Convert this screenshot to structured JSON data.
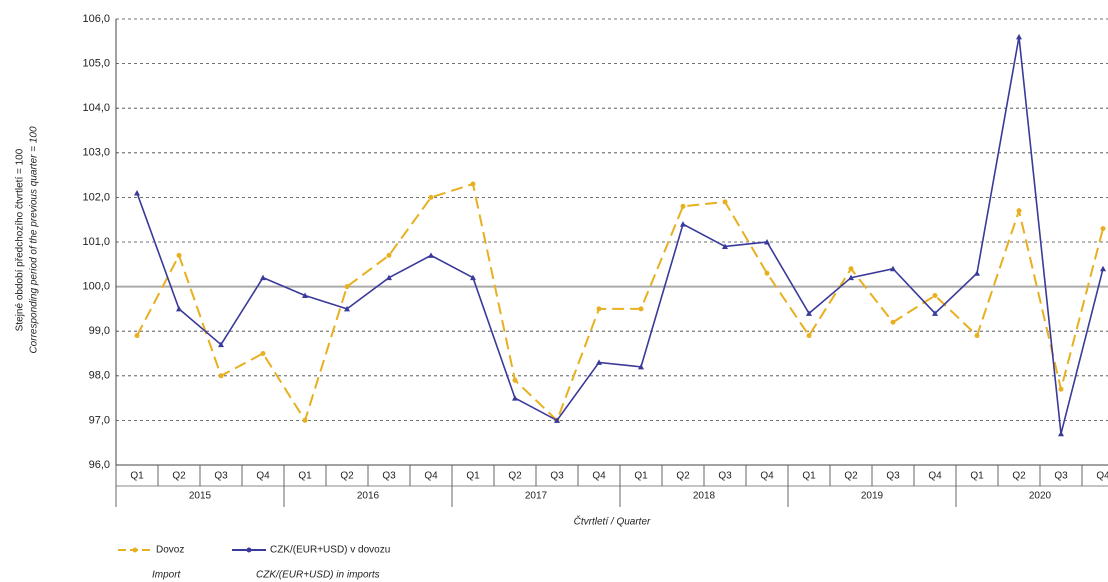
{
  "chart_data": {
    "type": "line",
    "y_label": [
      "Stejné období předchozího čtvrtletí = 100",
      "Corresponding period of the previous quarter = 100"
    ],
    "x_label": "Čtvrtletí  / Quarter",
    "categories": [
      "Q1",
      "Q2",
      "Q3",
      "Q4",
      "Q1",
      "Q2",
      "Q3",
      "Q4",
      "Q1",
      "Q2",
      "Q3",
      "Q4",
      "Q1",
      "Q2",
      "Q3",
      "Q4",
      "Q1",
      "Q2",
      "Q3",
      "Q4",
      "Q1",
      "Q2",
      "Q3",
      "Q4"
    ],
    "years": [
      "2015",
      "2016",
      "2017",
      "2018",
      "2019",
      "2020"
    ],
    "series": [
      {
        "name": "Dovoz",
        "name_en": "Import",
        "color": "#e8b020",
        "dashed": true,
        "values": [
          98.9,
          100.7,
          98.0,
          98.5,
          97.0,
          100.0,
          100.7,
          102.0,
          102.3,
          97.9,
          97.0,
          99.5,
          99.5,
          101.8,
          101.9,
          100.3,
          98.9,
          100.4,
          99.2,
          99.8,
          98.9,
          101.7,
          97.7,
          101.3
        ]
      },
      {
        "name": "CZK/(EUR+USD) v dovozu",
        "name_en": "CZK/(EUR+USD)  in imports",
        "color": "#3a3a9a",
        "dashed": false,
        "values": [
          102.1,
          99.5,
          98.7,
          100.2,
          99.8,
          99.5,
          100.2,
          100.7,
          100.2,
          97.5,
          97.0,
          98.3,
          98.2,
          101.4,
          100.9,
          101.0,
          99.4,
          100.2,
          100.4,
          99.4,
          100.3,
          105.6,
          96.7,
          100.4
        ]
      }
    ],
    "ylim": [
      96,
      106
    ],
    "yticks": [
      {
        "value": 96,
        "label": "96,0"
      },
      {
        "value": 97,
        "label": "97,0"
      },
      {
        "value": 98,
        "label": "98,0"
      },
      {
        "value": 99,
        "label": "99,0"
      },
      {
        "value": 100,
        "label": "100,0"
      },
      {
        "value": 101,
        "label": "101,0"
      },
      {
        "value": 102,
        "label": "102,0"
      },
      {
        "value": 103,
        "label": "103,0"
      },
      {
        "value": 104,
        "label": "104,0"
      },
      {
        "value": 105,
        "label": "105,0"
      },
      {
        "value": 106,
        "label": "106,0"
      }
    ],
    "reference_line": 100,
    "grid": true
  }
}
